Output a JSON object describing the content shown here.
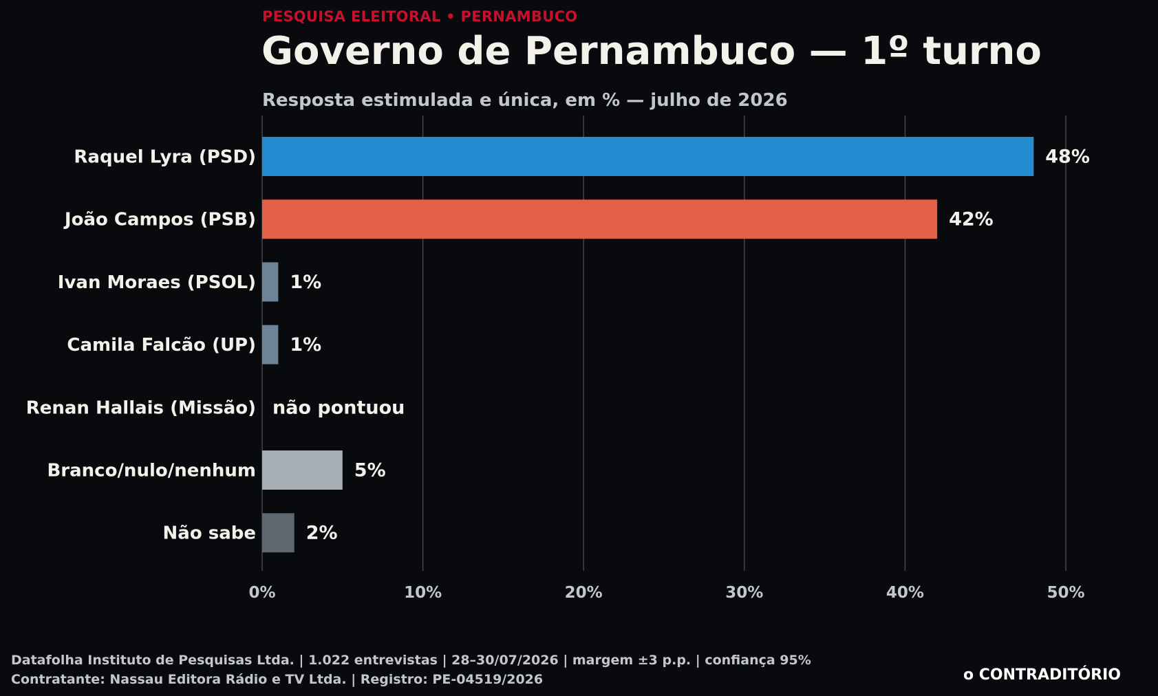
{
  "header": {
    "kicker": "PESQUISA ELEITORAL • PERNAMBUCO",
    "title": "Governo de Pernambuco — 1º turno",
    "subtitle": "Resposta estimulada e única, em % — julho de 2026"
  },
  "footer": {
    "source_line_1": "Datafolha Instituto de Pesquisas Ltda. | 1.022 entrevistas | 28–30/07/2026 | margem ±3 p.p. | confiança 95%",
    "source_line_2": "Contratante: Nassau Editora Rádio e TV Ltda. | Registro: PE-04519/2026",
    "brand": "o CONTRADITÓRIO"
  },
  "chart_data": {
    "type": "bar",
    "orientation": "horizontal",
    "title": "Governo de Pernambuco — 1º turno",
    "subtitle": "Resposta estimulada e única, em % — julho de 2026",
    "categories": [
      "Raquel Lyra (PSD)",
      "João Campos (PSB)",
      "Ivan Moraes (PSOL)",
      "Camila Falcão (UP)",
      "Renan Hallais (Missão)",
      "Branco/nulo/nenhum",
      "Não sabe"
    ],
    "values": [
      48,
      42,
      1,
      1,
      0,
      5,
      2
    ],
    "value_labels": [
      "48%",
      "42%",
      "1%",
      "1%",
      "não pontuou",
      "5%",
      "2%"
    ],
    "colors": [
      "#248cd0",
      "#e35f45",
      "#6f8396",
      "#6f8396",
      "#6f8396",
      "#a7aeb6",
      "#5e6670"
    ],
    "xlim": [
      0,
      50
    ],
    "xticks": [
      0,
      10,
      20,
      30,
      40,
      50
    ],
    "xtick_labels": [
      "0%",
      "10%",
      "20%",
      "30%",
      "40%",
      "50%"
    ],
    "grid": true,
    "legend": "none"
  }
}
